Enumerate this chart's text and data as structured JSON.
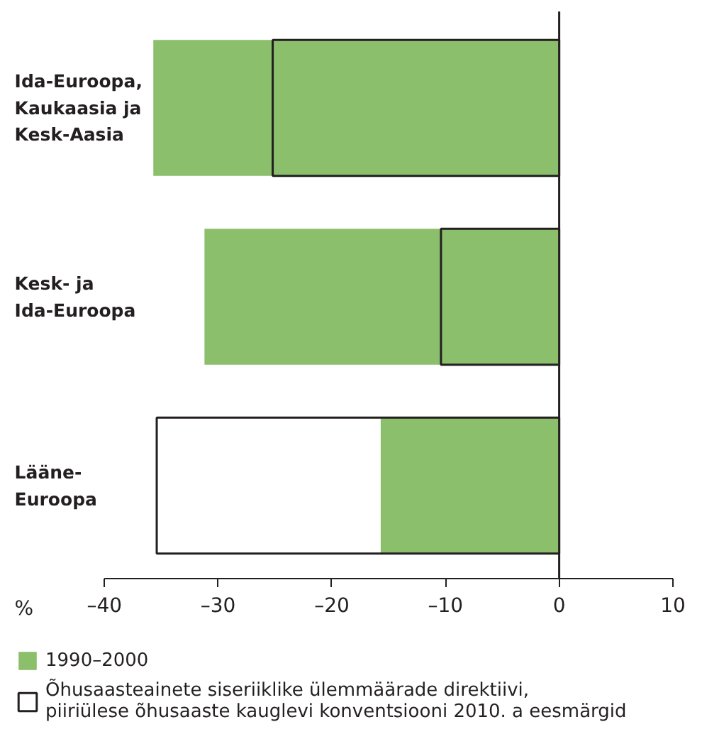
{
  "chart_data": {
    "type": "bar",
    "orientation": "horizontal",
    "categories": [
      "Ida-Euroopa, Kaukaasia ja Kesk-Aasia",
      "Kesk- ja Ida-Euroopa",
      "Lääne-Euroopa"
    ],
    "xlabel": "%",
    "xlim": [
      -40,
      10
    ],
    "xticks": [
      {
        "value": -40,
        "label": "–40"
      },
      {
        "value": -30,
        "label": "–30"
      },
      {
        "value": -20,
        "label": "–20"
      },
      {
        "value": -10,
        "label": "–10"
      },
      0,
      10
    ],
    "grid": false,
    "legend": "bottom",
    "ref_lines": [
      {
        "axis": "x",
        "value": 0,
        "color": "#231f20"
      }
    ],
    "series": [
      {
        "name": "1990–2000",
        "color": "#8bbf6c",
        "values": [
          -35.7,
          -31.2,
          -15.7
        ]
      },
      {
        "name": "Õhusaasteainete siseriiklike ülemmäärade direktiivi, piiriülese õhusaaste kauglevi konventsiooni 2010. a eesmärgid",
        "color": "#231f20",
        "values": [
          -25.2,
          -10.4,
          -35.4
        ]
      }
    ]
  }
}
